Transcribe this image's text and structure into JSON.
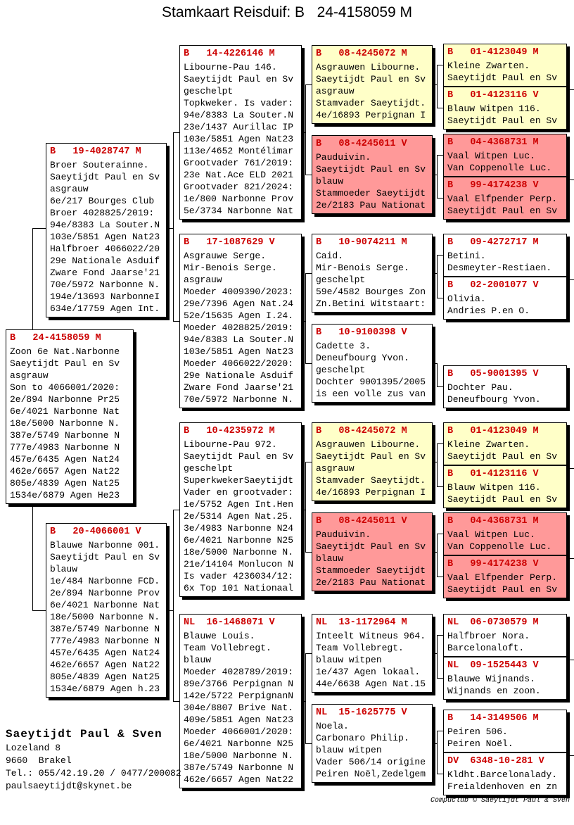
{
  "title": "Stamkaart Reisduif: B   24-4158059 M",
  "colors": {
    "header-red": "#cc0000",
    "box-yellow": "#ffffc8",
    "box-pink": "#ff9999"
  },
  "owner": {
    "name": "Saeytijdt Paul & Sven",
    "address1": "Lozeland 8",
    "address2": "9660  Brakel",
    "phone": "Tel.: 055/42.19.20 / 0477/200082",
    "email": "paulsaeytijdt@skynet.be"
  },
  "footer": "Compuclub © Saeytijdt Paul & Sven",
  "boxes": {
    "subject": {
      "header": "B   24-4158059 M",
      "lines": [
        "Zoon 6e Nat.Narbonne",
        "Saeytijdt Paul en Sv",
        "asgrauw",
        "Son to 4066001/2020:",
        "2e/894 Narbonne Pr25",
        "6e/4021 Narbonne Nat",
        "18e/5000 Narbonne N.",
        "387e/5749 Narbonne N",
        "777e/4983 Narbonne N",
        "457e/6435 Agen Nat24",
        "462e/6657 Agen Nat22",
        "805e/4839 Agen Nat25",
        "1534e/6879 Agen He23"
      ]
    },
    "father": {
      "header": "B   19-4028747 M",
      "lines": [
        "Broer Souterainne.",
        "Saeytijdt Paul en Sv",
        "asgrauw",
        "6e/217 Bourges Club",
        "Broer 4028825/2019:",
        "94e/8383 La Souter.N",
        "103e/5851 Agen Nat23",
        "Halfbroer 4066022/20",
        "29e Nationale Asduif",
        "Zware Fond Jaarse'21",
        "70e/5972 Narbonne N.",
        "194e/13693 NarbonneI",
        "634e/17759 Agen Int."
      ]
    },
    "mother": {
      "header": "B   20-4066001 V",
      "lines": [
        "Blauwe Narbonne 001.",
        "Saeytijdt Paul en Sv",
        "blauw",
        "1e/484 Narbonne FCD.",
        "2e/894 Narbonne Prov",
        "6e/4021 Narbonne Nat",
        "18e/5000 Narbonne N.",
        "387e/5749 Narbonne N",
        "777e/4983 Narbonne N",
        "457e/6435 Agen Nat24",
        "462e/6657 Agen Nat22",
        "805e/4839 Agen Nat25",
        "1534e/6879 Agen h.23"
      ]
    },
    "pgf": {
      "header": "B   14-4226146 M",
      "lines": [
        "Libourne-Pau 146.",
        "Saeytijdt Paul en Sv",
        "geschelpt",
        "Topkweker. Is vader:",
        "94e/8383 La Souter.N",
        "23e/1437 Aurillac IP",
        "103e/5851 Agen Nat23",
        "113e/4652 Montélimar",
        "Grootvader 761/2019:",
        "23e Nat.Ace ELD 2021",
        "Grootvader 821/2024:",
        "1e/800 Narbonne Prov",
        "5e/3734 Narbonne Nat"
      ]
    },
    "pgm": {
      "header": "B   17-1087629 V",
      "lines": [
        "Asgrauwe Serge.",
        "Mir-Benois Serge.",
        "asgrauw",
        "Moeder 4009390/2023:",
        "29e/7396 Agen Nat.24",
        "52e/15635 Agen I.24.",
        "Moeder 4028825/2019:",
        "94e/8383 La Souter.N",
        "103e/5851 Agen Nat23",
        "Moeder 4066022/2020:",
        "29e Nationale Asduif",
        "Zware Fond Jaarse'21",
        "70e/5972 Narbonne N."
      ]
    },
    "mgf": {
      "header": "B   10-4235972 M",
      "lines": [
        "Libourne-Pau 972.",
        "Saeytijdt Paul en Sv",
        "geschelpt",
        "SuperkwekerSaeytijdt",
        "Vader en grootvader:",
        "1e/5752 Agen Int.Hen",
        "2e/5314 Agen Nat.25.",
        "3e/4983 Narbonne N24",
        "6e/4021 Narbonne N25",
        "18e/5000 Narbonne N.",
        "21e/14104 Monlucon N",
        "Is vader 4236034/12:",
        "6x Top 101 Nationaal"
      ]
    },
    "mgm": {
      "header": "NL  16-1468071 V",
      "lines": [
        "Blauwe Louis.",
        "Team Vollebregt.",
        "blauw",
        "Moeder 4028789/2019:",
        "89e/3766 Perpignan N",
        "142e/5722 PerpignanN",
        "304e/8807 Brive Nat.",
        "409e/5851 Agen Nat23",
        "Moeder 4066001/2020:",
        "6e/4021 Narbonne N25",
        "18e/5000 Narbonne N.",
        "387e/5749 Narbonne N",
        "462e/6657 Agen Nat22"
      ]
    },
    "b08_072": {
      "header": "B   08-4245072 M",
      "lines": [
        "Asgrauwen Libourne.",
        "Saeytijdt Paul en Sv",
        "asgrauw",
        "Stamvader Saeytijdt.",
        "4e/16893 Perpignan I"
      ]
    },
    "b08_011": {
      "header": "B   08-4245011 V",
      "lines": [
        "Pauduivin.",
        "Saeytijdt Paul en Sv",
        "blauw",
        "Stammoeder Saeytijdt",
        "2e/2183 Pau Nationat"
      ]
    },
    "b10_211": {
      "header": "B   10-9074211 M",
      "lines": [
        "Caid.",
        "Mir-Benois Serge.",
        "geschelpt",
        "59e/4582 Bourges Zon",
        "Zn.Betini Witstaart:"
      ]
    },
    "b10_398": {
      "header": "B   10-9100398 V",
      "lines": [
        "Cadette 3.",
        "Deneufbourg Yvon.",
        "geschelpt",
        "Dochter 9001395/2005",
        "is een volle zus van"
      ]
    },
    "nl13": {
      "header": "NL  13-1172964 M",
      "lines": [
        "Inteelt Witneus 964.",
        "Team Vollebregt.",
        "blauw witpen",
        "1e/437 Agen lokaal.",
        "44e/6638 Agen Nat.15"
      ]
    },
    "nl15": {
      "header": "NL  15-1625775 V",
      "lines": [
        "Noela.",
        "Carbonaro Philip.",
        "blauw witpen",
        "Vader 506/14 origine",
        "Peiren Noël,Zedelgem"
      ]
    },
    "b01_049": {
      "header": "B   01-4123049 M",
      "lines": [
        "Kleine Zwarten.",
        "Saeytijdt Paul en Sv"
      ]
    },
    "b01_116": {
      "header": "B   01-4123116 V",
      "lines": [
        "Blauw Witpen 116.",
        "Saeytijdt Paul en Sv"
      ]
    },
    "b04_731": {
      "header": "B   04-4368731 M",
      "lines": [
        "Vaal Witpen Luc.",
        "Van Coppenolle Luc."
      ]
    },
    "b99_238": {
      "header": "B   99-4174238 V",
      "lines": [
        "Vaal Elfpender Perp.",
        "Saeytijdt Paul en Sv"
      ]
    },
    "b09_717": {
      "header": "B   09-4272717 M",
      "lines": [
        "Betini.",
        "Desmeyter-Restiaen."
      ]
    },
    "b02_077": {
      "header": "B   02-2001077 V",
      "lines": [
        "Olivia.",
        "Andries P.en O."
      ]
    },
    "b05_395": {
      "header": "B   05-9001395 V",
      "lines": [
        "Dochter Pau.",
        "Deneufbourg Yvon."
      ]
    },
    "nl06": {
      "header": "NL  06-0730579 M",
      "lines": [
        "Halfbroer Nora.",
        "Barcelonaloft."
      ]
    },
    "nl09": {
      "header": "NL  09-1525443 V",
      "lines": [
        "Blauwe Wijnands.",
        "Wijnands en zoon."
      ]
    },
    "b14_506": {
      "header": "B   14-3149506 M",
      "lines": [
        "Peiren 506.",
        "Peiren Noël."
      ]
    },
    "dv_281": {
      "header": "DV  6348-10-281 V",
      "lines": [
        "Kldht.Barcelonalady.",
        "Freialdenhoven en zn"
      ]
    }
  }
}
